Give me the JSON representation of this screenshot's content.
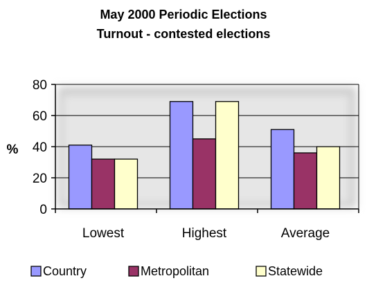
{
  "chart_data": {
    "type": "bar",
    "title_lines": [
      "May 2000 Periodic Elections",
      "Turnout - contested elections"
    ],
    "ylabel": "%",
    "xlabel": "",
    "ylim": [
      0,
      80
    ],
    "yticks": [
      "0",
      "20",
      "40",
      "60",
      "80"
    ],
    "categories": [
      "Lowest",
      "Highest",
      "Average"
    ],
    "series": [
      {
        "name": "Country",
        "values": [
          41,
          69,
          51
        ],
        "color": "#9999ff"
      },
      {
        "name": "Metropolitan",
        "values": [
          32,
          45,
          36
        ],
        "color": "#993366"
      },
      {
        "name": "Statewide",
        "values": [
          32,
          69,
          40
        ],
        "color": "#ffffcc"
      }
    ],
    "grid": true,
    "legend_position": "bottom"
  }
}
